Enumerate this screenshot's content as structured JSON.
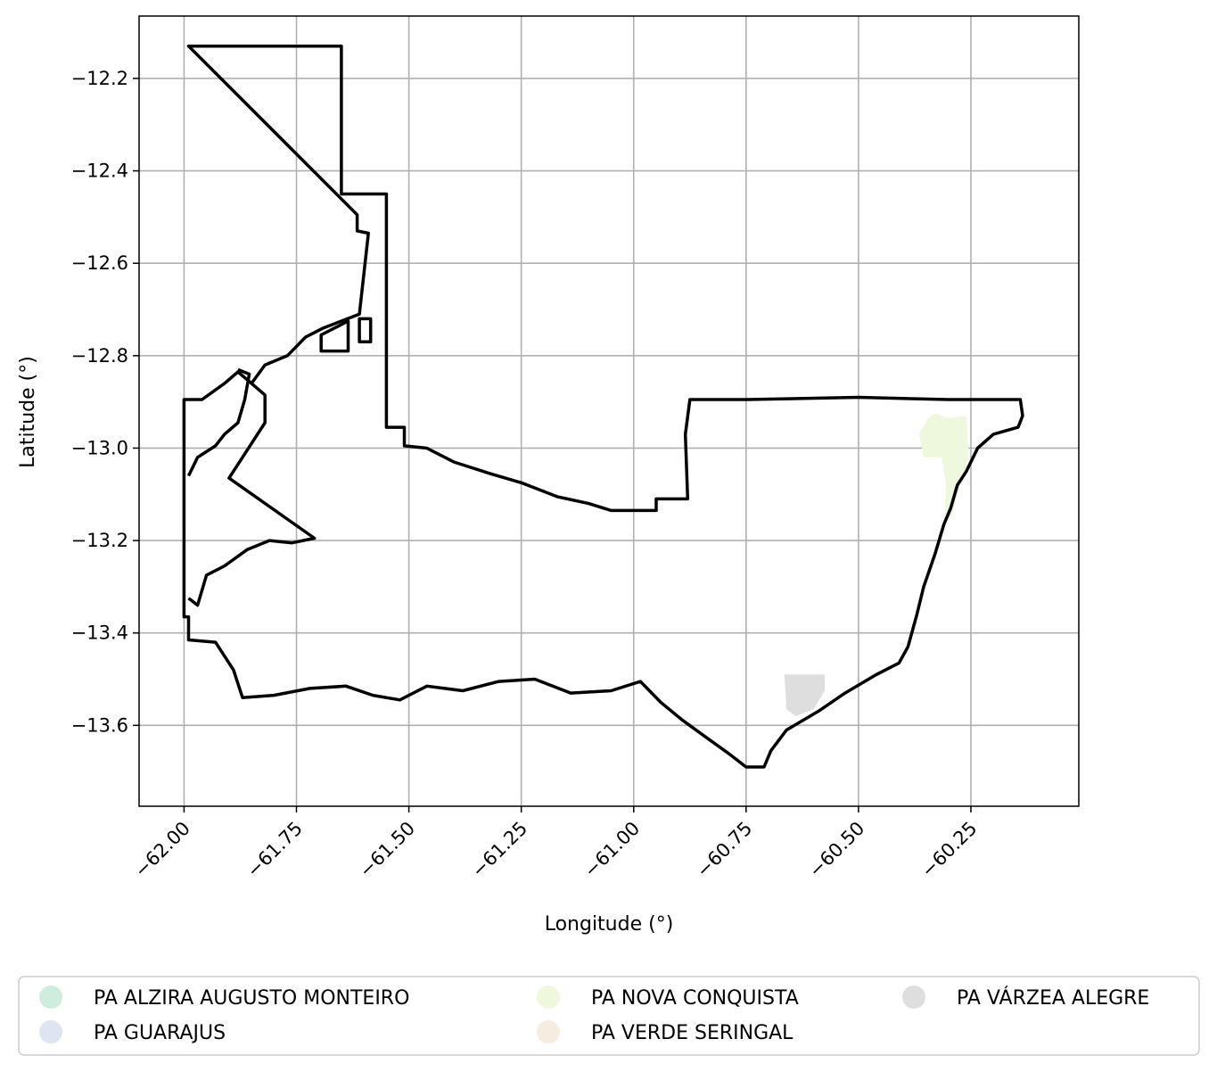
{
  "chart_data": {
    "type": "map",
    "xlabel": "Longitude (°)",
    "ylabel": "Latitude (°)",
    "xlim": [
      -62.1,
      -60.01
    ],
    "ylim": [
      -13.775,
      -12.065
    ],
    "xticks": [
      -62.0,
      -61.75,
      -61.5,
      -61.25,
      -61.0,
      -60.75,
      -60.5,
      -60.25
    ],
    "xtick_labels": [
      "−62.00",
      "−61.75",
      "−61.50",
      "−61.25",
      "−61.00",
      "−60.75",
      "−60.50",
      "−60.25"
    ],
    "yticks": [
      -12.2,
      -12.4,
      -12.6,
      -12.8,
      -13.0,
      -13.2,
      -13.4,
      -13.6
    ],
    "ytick_labels": [
      "−12.2",
      "−12.4",
      "−12.6",
      "−12.8",
      "−13.0",
      "−13.2",
      "−13.4",
      "−13.6"
    ],
    "grid": true,
    "legend_position": "below",
    "legend": [
      {
        "label": "PA ALZIRA AUGUSTO MONTEIRO",
        "color": "#cdeedd"
      },
      {
        "label": "PA GUARAJUS",
        "color": "#dde5f2"
      },
      {
        "label": "PA NOVA CONQUISTA",
        "color": "#eef8dc"
      },
      {
        "label": "PA VERDE SERINGAL",
        "color": "#f6ece0"
      },
      {
        "label": "PA VÁRZEA ALEGRE",
        "color": "#dedede"
      }
    ],
    "boundary_outline": [
      [
        -61.99,
        -12.13
      ],
      [
        -61.65,
        -12.13
      ],
      [
        -61.65,
        -12.45
      ],
      [
        -61.55,
        -12.45
      ],
      [
        -61.55,
        -12.955
      ],
      [
        -61.51,
        -12.955
      ],
      [
        -61.51,
        -12.995
      ],
      [
        -61.46,
        -13.0
      ],
      [
        -61.4,
        -13.03
      ],
      [
        -61.32,
        -13.055
      ],
      [
        -61.25,
        -13.075
      ],
      [
        -61.17,
        -13.105
      ],
      [
        -61.1,
        -13.12
      ],
      [
        -61.05,
        -13.135
      ],
      [
        -60.95,
        -13.135
      ],
      [
        -60.95,
        -13.11
      ],
      [
        -60.88,
        -13.11
      ],
      [
        -60.885,
        -12.97
      ],
      [
        -60.875,
        -12.895
      ],
      [
        -60.75,
        -12.895
      ],
      [
        -60.5,
        -12.89
      ],
      [
        -60.3,
        -12.895
      ],
      [
        -60.14,
        -12.895
      ],
      [
        -60.135,
        -12.93
      ],
      [
        -60.145,
        -12.955
      ],
      [
        -60.2,
        -12.97
      ],
      [
        -60.235,
        -13.0
      ],
      [
        -60.26,
        -13.05
      ],
      [
        -60.28,
        -13.08
      ],
      [
        -60.295,
        -13.13
      ],
      [
        -60.31,
        -13.165
      ],
      [
        -60.33,
        -13.23
      ],
      [
        -60.355,
        -13.3
      ],
      [
        -60.37,
        -13.36
      ],
      [
        -60.39,
        -13.43
      ],
      [
        -60.41,
        -13.465
      ],
      [
        -60.46,
        -13.49
      ],
      [
        -60.53,
        -13.53
      ],
      [
        -60.59,
        -13.57
      ],
      [
        -60.66,
        -13.61
      ],
      [
        -60.695,
        -13.655
      ],
      [
        -60.71,
        -13.69
      ],
      [
        -60.75,
        -13.69
      ],
      [
        -60.79,
        -13.66
      ],
      [
        -60.84,
        -13.625
      ],
      [
        -60.89,
        -13.59
      ],
      [
        -60.94,
        -13.55
      ],
      [
        -60.985,
        -13.505
      ],
      [
        -61.05,
        -13.525
      ],
      [
        -61.14,
        -13.53
      ],
      [
        -61.22,
        -13.5
      ],
      [
        -61.3,
        -13.505
      ],
      [
        -61.38,
        -13.525
      ],
      [
        -61.46,
        -13.515
      ],
      [
        -61.52,
        -13.545
      ],
      [
        -61.58,
        -13.535
      ],
      [
        -61.64,
        -13.515
      ],
      [
        -61.72,
        -13.52
      ],
      [
        -61.8,
        -13.535
      ],
      [
        -61.87,
        -13.54
      ],
      [
        -61.89,
        -13.48
      ],
      [
        -61.93,
        -13.42
      ],
      [
        -61.99,
        -13.415
      ],
      [
        -61.99,
        -13.365
      ],
      [
        -62.0,
        -13.365
      ],
      [
        -62.0,
        -12.895
      ],
      [
        -61.96,
        -12.895
      ],
      [
        -61.91,
        -12.86
      ],
      [
        -61.88,
        -12.835
      ],
      [
        -61.85,
        -12.86
      ],
      [
        -61.82,
        -12.82
      ],
      [
        -61.77,
        -12.8
      ],
      [
        -61.73,
        -12.76
      ],
      [
        -61.69,
        -12.74
      ],
      [
        -61.65,
        -12.725
      ],
      [
        -61.61,
        -12.71
      ],
      [
        -61.59,
        -12.535
      ],
      [
        -61.615,
        -12.53
      ],
      [
        -61.615,
        -12.495
      ],
      [
        -61.99,
        -12.13
      ]
    ],
    "inner_lines": [
      [
        [
          -61.99,
          -13.06
        ],
        [
          -61.97,
          -13.02
        ],
        [
          -61.93,
          -12.995
        ],
        [
          -61.91,
          -12.97
        ],
        [
          -61.88,
          -12.945
        ],
        [
          -61.865,
          -12.895
        ],
        [
          -61.855,
          -12.84
        ],
        [
          -61.88,
          -12.83
        ]
      ],
      [
        [
          -61.99,
          -13.325
        ],
        [
          -61.97,
          -13.34
        ],
        [
          -61.95,
          -13.275
        ],
        [
          -61.91,
          -13.255
        ],
        [
          -61.86,
          -13.22
        ],
        [
          -61.81,
          -13.2
        ],
        [
          -61.76,
          -13.205
        ],
        [
          -61.71,
          -13.195
        ],
        [
          -61.9,
          -13.065
        ],
        [
          -61.82,
          -12.945
        ],
        [
          -61.82,
          -12.885
        ],
        [
          -61.85,
          -12.86
        ]
      ]
    ],
    "inner_parcels": [
      [
        [
          -61.695,
          -12.755
        ],
        [
          -61.635,
          -12.725
        ],
        [
          -61.635,
          -12.79
        ],
        [
          -61.665,
          -12.79
        ],
        [
          -61.695,
          -12.79
        ]
      ],
      [
        [
          -61.61,
          -12.72
        ],
        [
          -61.585,
          -12.72
        ],
        [
          -61.585,
          -12.77
        ],
        [
          -61.61,
          -12.77
        ],
        [
          -61.61,
          -12.72
        ]
      ]
    ],
    "filled_areas": [
      {
        "name": "PA NOVA CONQUISTA",
        "color": "#eef8dc",
        "coords": [
          [
            -60.345,
            -12.935
          ],
          [
            -60.33,
            -12.925
          ],
          [
            -60.3,
            -12.935
          ],
          [
            -60.26,
            -12.93
          ],
          [
            -60.255,
            -13.02
          ],
          [
            -60.27,
            -13.07
          ],
          [
            -60.28,
            -13.1
          ],
          [
            -60.29,
            -13.14
          ],
          [
            -60.31,
            -13.165
          ],
          [
            -60.305,
            -13.08
          ],
          [
            -60.315,
            -13.02
          ],
          [
            -60.355,
            -13.02
          ],
          [
            -60.365,
            -12.97
          ],
          [
            -60.345,
            -12.935
          ]
        ]
      },
      {
        "name": "PA VÁRZEA ALEGRE",
        "color": "#dedede",
        "coords": [
          [
            -60.665,
            -13.49
          ],
          [
            -60.575,
            -13.49
          ],
          [
            -60.575,
            -13.525
          ],
          [
            -60.6,
            -13.565
          ],
          [
            -60.64,
            -13.58
          ],
          [
            -60.66,
            -13.565
          ],
          [
            -60.665,
            -13.49
          ]
        ]
      }
    ]
  }
}
